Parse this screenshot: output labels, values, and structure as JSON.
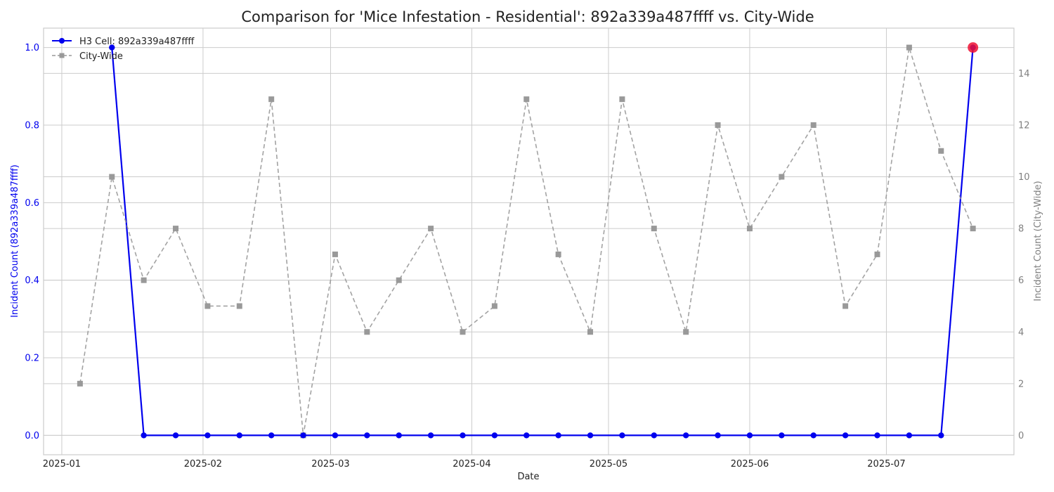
{
  "chart_data": {
    "type": "line",
    "title": "Comparison for 'Mice Infestation - Residential': 892a339a487ffff vs. City-Wide",
    "xlabel": "Date",
    "ylabel_left": "Incident Count (892a339a487ffff)",
    "ylabel_right": "Incident Count (City-Wide)",
    "ylim_left": [
      -0.05,
      1.05
    ],
    "ylim_right": [
      -0.75,
      15.75
    ],
    "xlim": [
      "2024-12-28",
      "2025-07-29"
    ],
    "x_ticks": [
      "2025-01-01",
      "2025-02-01",
      "2025-03-01",
      "2025-04-01",
      "2025-05-01",
      "2025-06-01",
      "2025-07-01"
    ],
    "x_tick_labels": [
      "2025-01",
      "2025-02",
      "2025-03",
      "2025-04",
      "2025-05",
      "2025-06",
      "2025-07"
    ],
    "y_ticks_left": [
      "0.0",
      "0.2",
      "0.4",
      "0.6",
      "0.8",
      "1.0"
    ],
    "y_ticks_right": [
      "0",
      "2",
      "4",
      "6",
      "8",
      "10",
      "12",
      "14"
    ],
    "grid": true,
    "legend_position": "top-left",
    "colors": {
      "h3_series": "#0000ee",
      "city_series": "#999999",
      "highlight": "#ee1133",
      "left_axis_text": "#0000ee",
      "right_axis_text": "#808080",
      "grid": "#cccccc"
    },
    "series": [
      {
        "name": "H3 Cell: 892a339a487ffff",
        "axis": "left",
        "style": "solid-circle",
        "x": [
          "2025-01-12",
          "2025-01-19",
          "2025-01-26",
          "2025-02-02",
          "2025-02-09",
          "2025-02-16",
          "2025-02-23",
          "2025-03-02",
          "2025-03-09",
          "2025-03-16",
          "2025-03-23",
          "2025-03-30",
          "2025-04-06",
          "2025-04-13",
          "2025-04-20",
          "2025-04-27",
          "2025-05-04",
          "2025-05-11",
          "2025-05-18",
          "2025-05-25",
          "2025-06-01",
          "2025-06-08",
          "2025-06-15",
          "2025-06-22",
          "2025-06-29",
          "2025-07-06",
          "2025-07-13",
          "2025-07-20"
        ],
        "values": [
          1,
          0,
          0,
          0,
          0,
          0,
          0,
          0,
          0,
          0,
          0,
          0,
          0,
          0,
          0,
          0,
          0,
          0,
          0,
          0,
          0,
          0,
          0,
          0,
          0,
          0,
          0,
          1
        ]
      },
      {
        "name": "City-Wide",
        "axis": "right",
        "style": "dashed-square",
        "x": [
          "2025-01-05",
          "2025-01-12",
          "2025-01-19",
          "2025-01-26",
          "2025-02-02",
          "2025-02-09",
          "2025-02-16",
          "2025-02-23",
          "2025-03-02",
          "2025-03-09",
          "2025-03-16",
          "2025-03-23",
          "2025-03-30",
          "2025-04-06",
          "2025-04-13",
          "2025-04-20",
          "2025-04-27",
          "2025-05-04",
          "2025-05-11",
          "2025-05-18",
          "2025-05-25",
          "2025-06-01",
          "2025-06-08",
          "2025-06-15",
          "2025-06-22",
          "2025-06-29",
          "2025-07-06",
          "2025-07-13",
          "2025-07-20"
        ],
        "values": [
          2,
          10,
          6,
          8,
          5,
          5,
          13,
          0,
          7,
          4,
          6,
          8,
          4,
          5,
          13,
          7,
          4,
          13,
          8,
          4,
          12,
          8,
          10,
          12,
          5,
          7,
          15,
          11,
          8
        ]
      }
    ],
    "highlight_point": {
      "x": "2025-07-20",
      "value": 1,
      "axis": "left"
    }
  }
}
